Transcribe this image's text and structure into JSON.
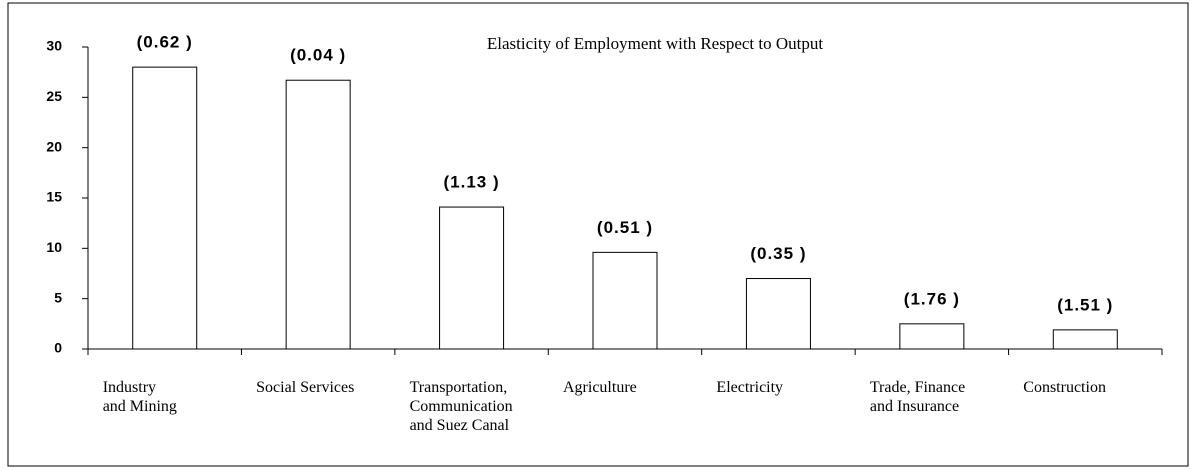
{
  "chart_data": {
    "type": "bar",
    "title": "Elasticity of Employment with Respect to Output",
    "categories": [
      "Industry\nand Mining",
      "Social Services",
      "Transportation,\nCommunication\nand Suez Canal",
      "Agriculture",
      "Electricity",
      "Trade, Finance\nand Insurance",
      "Construction"
    ],
    "values": [
      28,
      26.7,
      14.1,
      9.6,
      7.0,
      2.5,
      1.9
    ],
    "annotations": [
      "(0.62 )",
      "(0.04 )",
      "(1.13 )",
      "(0.51 )",
      "(0.35 )",
      "(1.76 )",
      "(1.51 )"
    ],
    "color": "#ffffff",
    "ylim": [
      0,
      30
    ],
    "yticks": [
      0,
      5,
      10,
      15,
      20,
      25,
      30
    ],
    "grid": false
  }
}
